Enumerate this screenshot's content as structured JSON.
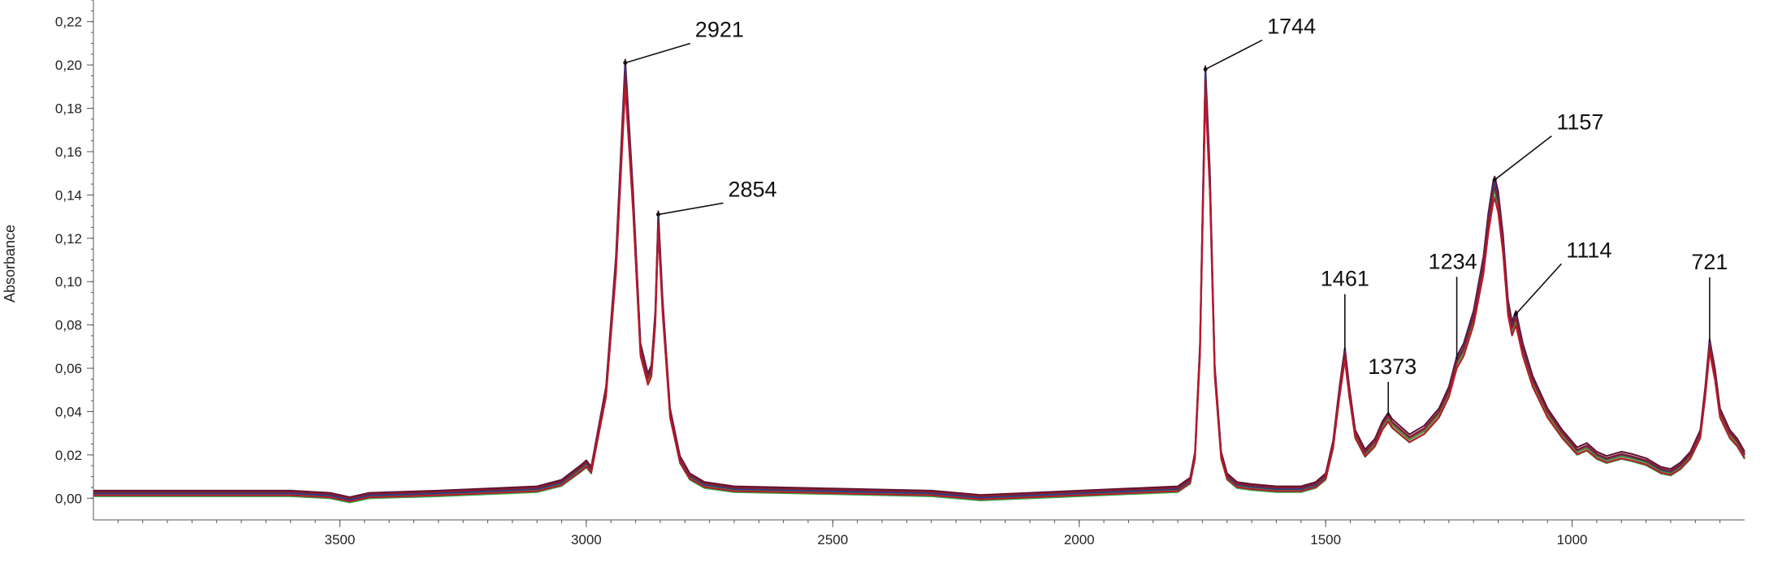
{
  "chart_data": {
    "type": "line",
    "title": "",
    "xlabel": "",
    "ylabel": "Absorbance",
    "xlim": [
      4000,
      650
    ],
    "ylim": [
      -0.01,
      0.23
    ],
    "x_reversed": true,
    "grid": false,
    "xticks": [
      3500,
      3000,
      2500,
      2000,
      1500,
      1000
    ],
    "xtick_labels": [
      "3500",
      "3000",
      "2500",
      "2000",
      "1500",
      "1000"
    ],
    "yticks": [
      0.0,
      0.02,
      0.04,
      0.06,
      0.08,
      0.1,
      0.12,
      0.14,
      0.16,
      0.18,
      0.2,
      0.22
    ],
    "ytick_labels": [
      "0,00",
      "0,02",
      "0,04",
      "0,06",
      "0,08",
      "0,10",
      "0,12",
      "0,14",
      "0,16",
      "0,18",
      "0,20",
      "0,22"
    ],
    "peaks": [
      {
        "label": "2921",
        "x": 2921,
        "y": 0.201
      },
      {
        "label": "2854",
        "x": 2854,
        "y": 0.131
      },
      {
        "label": "1744",
        "x": 1744,
        "y": 0.198
      },
      {
        "label": "1461",
        "x": 1461,
        "y": 0.068
      },
      {
        "label": "1373",
        "x": 1373,
        "y": 0.038
      },
      {
        "label": "1234",
        "x": 1234,
        "y": 0.064
      },
      {
        "label": "1157",
        "x": 1157,
        "y": 0.147
      },
      {
        "label": "1114",
        "x": 1114,
        "y": 0.085
      },
      {
        "label": "721",
        "x": 721,
        "y": 0.072
      }
    ],
    "base_spectrum": {
      "x": [
        4000,
        3800,
        3600,
        3520,
        3480,
        3440,
        3300,
        3100,
        3050,
        3010,
        3000,
        2990,
        2960,
        2940,
        2921,
        2905,
        2890,
        2875,
        2868,
        2860,
        2854,
        2845,
        2830,
        2810,
        2790,
        2760,
        2700,
        2500,
        2300,
        2200,
        2100,
        1900,
        1800,
        1775,
        1765,
        1755,
        1744,
        1735,
        1725,
        1712,
        1700,
        1680,
        1650,
        1600,
        1550,
        1520,
        1500,
        1485,
        1472,
        1461,
        1452,
        1440,
        1420,
        1400,
        1385,
        1373,
        1365,
        1350,
        1330,
        1300,
        1270,
        1250,
        1234,
        1220,
        1200,
        1180,
        1170,
        1160,
        1157,
        1150,
        1140,
        1130,
        1122,
        1114,
        1100,
        1080,
        1050,
        1020,
        990,
        970,
        950,
        930,
        900,
        880,
        850,
        820,
        800,
        780,
        760,
        740,
        730,
        721,
        710,
        700,
        690,
        680,
        665,
        650
      ],
      "y": [
        0.002,
        0.002,
        0.002,
        0.001,
        -0.001,
        0.001,
        0.002,
        0.004,
        0.007,
        0.014,
        0.016,
        0.013,
        0.05,
        0.11,
        0.201,
        0.14,
        0.07,
        0.056,
        0.06,
        0.085,
        0.131,
        0.09,
        0.04,
        0.018,
        0.01,
        0.006,
        0.004,
        0.003,
        0.002,
        0.0,
        0.001,
        0.003,
        0.004,
        0.008,
        0.02,
        0.07,
        0.198,
        0.15,
        0.06,
        0.02,
        0.01,
        0.006,
        0.005,
        0.004,
        0.004,
        0.006,
        0.01,
        0.025,
        0.05,
        0.068,
        0.05,
        0.03,
        0.021,
        0.026,
        0.034,
        0.038,
        0.035,
        0.032,
        0.028,
        0.032,
        0.04,
        0.05,
        0.064,
        0.07,
        0.085,
        0.11,
        0.13,
        0.145,
        0.147,
        0.14,
        0.12,
        0.09,
        0.08,
        0.085,
        0.07,
        0.055,
        0.04,
        0.03,
        0.022,
        0.024,
        0.02,
        0.018,
        0.02,
        0.019,
        0.017,
        0.013,
        0.012,
        0.015,
        0.02,
        0.03,
        0.05,
        0.072,
        0.058,
        0.04,
        0.035,
        0.03,
        0.026,
        0.02
      ]
    },
    "series": [
      {
        "color": "#5a1030",
        "offset": 0.0015,
        "scale": 1.0
      },
      {
        "color": "#7a2a8c",
        "offset": 0.0008,
        "scale": 0.985
      },
      {
        "color": "#2aa84a",
        "offset": -0.001,
        "scale": 0.955
      },
      {
        "color": "#3f8f3a",
        "offset": 0.0,
        "scale": 0.965
      },
      {
        "color": "#b08a20",
        "offset": 0.0005,
        "scale": 0.975
      },
      {
        "color": "#2b3a8c",
        "offset": 0.0003,
        "scale": 0.99
      },
      {
        "color": "#8a1c2a",
        "offset": 0.001,
        "scale": 0.97
      },
      {
        "color": "#c0152a",
        "offset": -0.0005,
        "scale": 0.945
      }
    ]
  }
}
